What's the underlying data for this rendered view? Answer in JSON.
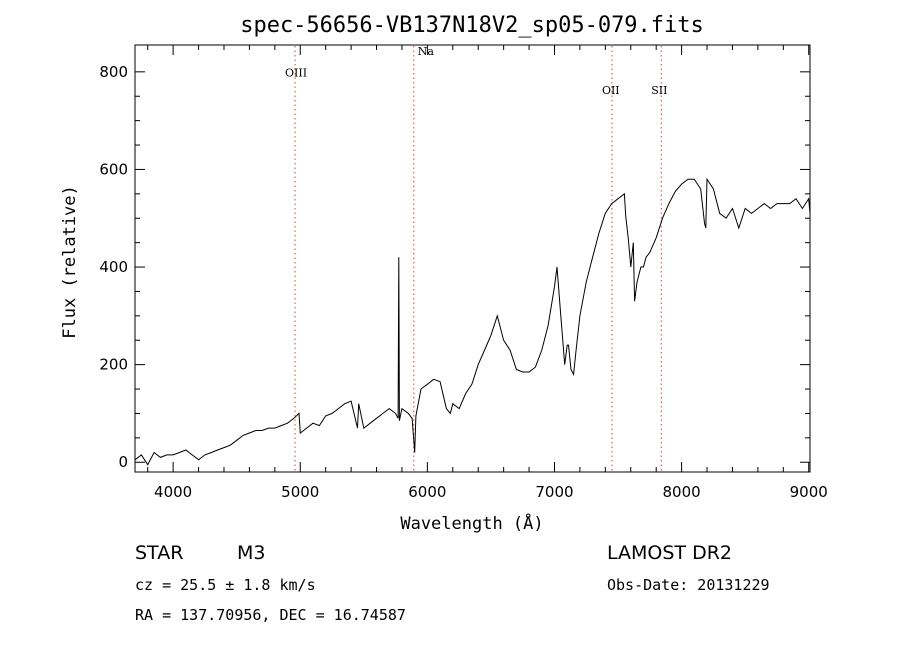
{
  "chart_data": {
    "type": "line",
    "title": "spec-56656-VB137N18V2_sp05-079.fits",
    "xlabel": "Wavelength (Å)",
    "ylabel": "Flux (relative)",
    "xlim": [
      3700,
      9010
    ],
    "ylim": [
      -20,
      855
    ],
    "xticks": [
      4000,
      5000,
      6000,
      7000,
      8000,
      9000
    ],
    "yticks": [
      0,
      200,
      400,
      600,
      800
    ],
    "grid": false,
    "series": [
      {
        "color": "#000000",
        "x": [
          3700,
          3750,
          3800,
          3850,
          3900,
          3950,
          4000,
          4050,
          4100,
          4150,
          4200,
          4250,
          4300,
          4350,
          4400,
          4450,
          4500,
          4550,
          4600,
          4650,
          4700,
          4750,
          4800,
          4850,
          4900,
          4950,
          4990,
          5000,
          5050,
          5100,
          5150,
          5200,
          5250,
          5300,
          5350,
          5400,
          5450,
          5460,
          5500,
          5550,
          5600,
          5650,
          5700,
          5750,
          5770,
          5775,
          5780,
          5800,
          5850,
          5880,
          5900,
          5910,
          5950,
          6000,
          6050,
          6100,
          6150,
          6180,
          6200,
          6250,
          6300,
          6350,
          6400,
          6450,
          6500,
          6550,
          6600,
          6650,
          6700,
          6750,
          6800,
          6850,
          6900,
          6950,
          7000,
          7020,
          7050,
          7080,
          7100,
          7110,
          7130,
          7150,
          7170,
          7200,
          7250,
          7300,
          7350,
          7400,
          7450,
          7500,
          7550,
          7560,
          7580,
          7600,
          7620,
          7630,
          7650,
          7680,
          7700,
          7720,
          7750,
          7800,
          7850,
          7900,
          7950,
          8000,
          8050,
          8100,
          8150,
          8180,
          8190,
          8200,
          8250,
          8300,
          8350,
          8400,
          8450,
          8500,
          8550,
          8600,
          8650,
          8700,
          8750,
          8800,
          8850,
          8900,
          8950,
          9000,
          9010
        ],
        "y": [
          5,
          15,
          -5,
          20,
          10,
          15,
          15,
          20,
          25,
          15,
          5,
          15,
          20,
          25,
          30,
          35,
          45,
          55,
          60,
          65,
          65,
          70,
          70,
          75,
          80,
          90,
          100,
          60,
          70,
          80,
          75,
          95,
          100,
          110,
          120,
          125,
          70,
          120,
          70,
          80,
          90,
          100,
          110,
          100,
          90,
          420,
          85,
          110,
          100,
          90,
          20,
          95,
          150,
          160,
          170,
          165,
          110,
          100,
          120,
          110,
          140,
          160,
          200,
          230,
          260,
          300,
          250,
          230,
          190,
          185,
          185,
          195,
          230,
          280,
          360,
          400,
          300,
          200,
          240,
          240,
          190,
          180,
          230,
          300,
          370,
          420,
          470,
          510,
          530,
          540,
          550,
          505,
          460,
          400,
          450,
          330,
          370,
          400,
          400,
          420,
          430,
          460,
          500,
          530,
          555,
          570,
          580,
          580,
          560,
          490,
          480,
          580,
          560,
          510,
          500,
          520,
          480,
          520,
          510,
          520,
          530,
          520,
          530,
          530,
          530,
          540,
          520,
          540,
          510
        ]
      }
    ],
    "lines": [
      {
        "label": "OIII",
        "wavelength": 4959,
        "label_y": 790
      },
      {
        "label": "Na",
        "wavelength": 5893,
        "label_y": 835
      },
      {
        "label": "OII",
        "wavelength": 7452,
        "label_y": 755
      },
      {
        "label": "SII",
        "wavelength": 7840,
        "label_y": 755
      }
    ]
  },
  "info": {
    "class_label": "STAR",
    "subclass": "M3",
    "survey": "LAMOST DR2",
    "cz": "cz = 25.5 ± 1.8 km/s",
    "obs_date": "Obs-Date: 20131229",
    "radec": "RA = 137.70956, DEC =  16.74587"
  },
  "colors": {
    "spectrum": "#000000",
    "marker_line": "#d0463b"
  }
}
